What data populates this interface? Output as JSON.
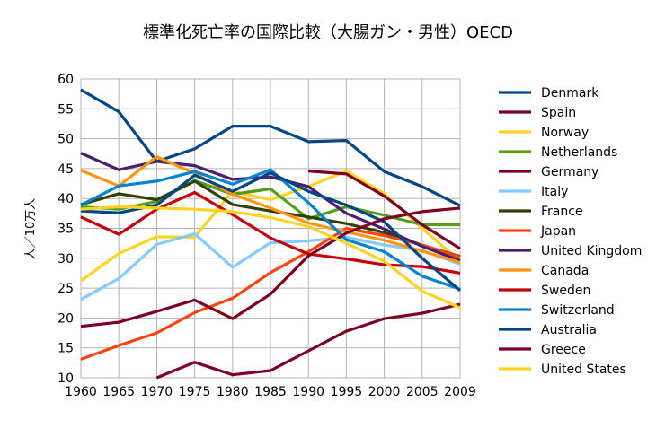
{
  "chart_data": {
    "type": "line",
    "title": "標準化死亡率の国際比較（大腸ガン・男性）OECD",
    "xlabel": "",
    "ylabel": "人／10万人",
    "x": [
      "1960",
      "1965",
      "1970",
      "1975",
      "1980",
      "1985",
      "1990",
      "1995",
      "2000",
      "2005",
      "2009"
    ],
    "ylim": [
      10,
      60
    ],
    "yticks": [
      10,
      15,
      20,
      25,
      30,
      35,
      40,
      45,
      50,
      55,
      60
    ],
    "grid": true,
    "legend": "right",
    "series": [
      {
        "name": "Denmark",
        "color": "#004586",
        "values": [
          58.2,
          54.5,
          46.2,
          48.3,
          52.1,
          52.1,
          49.5,
          49.7,
          44.5,
          42.0,
          38.8
        ]
      },
      {
        "name": "Spain",
        "color": "#7e0021",
        "values": [
          null,
          null,
          10.0,
          12.6,
          10.5,
          11.2,
          14.5,
          17.8,
          19.9,
          20.8,
          22.3
        ]
      },
      {
        "name": "Norway",
        "color": "#ffd320",
        "values": [
          26.2,
          30.8,
          33.6,
          33.5,
          41.2,
          39.8,
          42.0,
          44.6,
          40.8,
          35.0,
          29.5
        ]
      },
      {
        "name": "Netherlands",
        "color": "#579d1c",
        "values": [
          38.6,
          38.2,
          39.5,
          43.0,
          40.7,
          41.6,
          36.6,
          38.6,
          37.2,
          35.6,
          35.6
        ]
      },
      {
        "name": "Germany",
        "color": "#7e0021",
        "values": [
          null,
          null,
          null,
          null,
          null,
          null,
          44.6,
          44.1,
          40.4,
          35.6,
          31.6
        ]
      },
      {
        "name": "Italy",
        "color": "#83caff",
        "values": [
          23.1,
          26.6,
          32.3,
          34.1,
          28.5,
          32.6,
          32.9,
          33.5,
          32.2,
          31.3,
          29.0
        ]
      },
      {
        "name": "France",
        "color": "#314004",
        "values": [
          39.0,
          40.8,
          39.8,
          42.9,
          39.0,
          37.9,
          36.9,
          35.8,
          34.3,
          32.2,
          30.3
        ]
      },
      {
        "name": "Japan",
        "color": "#ff420e",
        "values": [
          13.1,
          15.4,
          17.5,
          20.9,
          23.3,
          27.6,
          31.1,
          35.0,
          33.8,
          32.2,
          30.2
        ]
      },
      {
        "name": "United Kingdom",
        "color": "#4b1f6f",
        "values": [
          47.6,
          44.8,
          46.2,
          45.5,
          43.2,
          43.6,
          42.0,
          37.5,
          34.9,
          32.0,
          29.6
        ]
      },
      {
        "name": "Canada",
        "color": "#ff950e",
        "values": [
          44.7,
          42.1,
          47.0,
          44.2,
          40.7,
          38.4,
          35.9,
          34.4,
          33.0,
          31.2,
          29.3
        ]
      },
      {
        "name": "Sweden",
        "color": "#c5000b",
        "values": [
          36.9,
          34.0,
          38.2,
          41.0,
          37.3,
          33.4,
          30.7,
          29.9,
          28.9,
          28.6,
          27.5
        ]
      },
      {
        "name": "Switzerland",
        "color": "#0084d1",
        "values": [
          38.9,
          42.1,
          42.9,
          44.5,
          42.4,
          44.8,
          39.3,
          33.1,
          31.1,
          27.0,
          24.8
        ]
      },
      {
        "name": "Australia",
        "color": "#004586",
        "values": [
          37.9,
          37.6,
          38.9,
          43.9,
          41.2,
          44.3,
          41.2,
          38.9,
          36.1,
          30.0,
          24.6
        ]
      },
      {
        "name": "Greece",
        "color": "#7e0021",
        "values": [
          18.6,
          19.3,
          21.1,
          23.0,
          19.9,
          24.0,
          30.4,
          34.2,
          36.6,
          37.8,
          38.4
        ]
      },
      {
        "name": "United States",
        "color": "#ffd320",
        "values": [
          38.2,
          38.6,
          38.4,
          38.2,
          37.8,
          36.8,
          35.3,
          32.5,
          29.5,
          24.5,
          21.7
        ]
      }
    ]
  }
}
